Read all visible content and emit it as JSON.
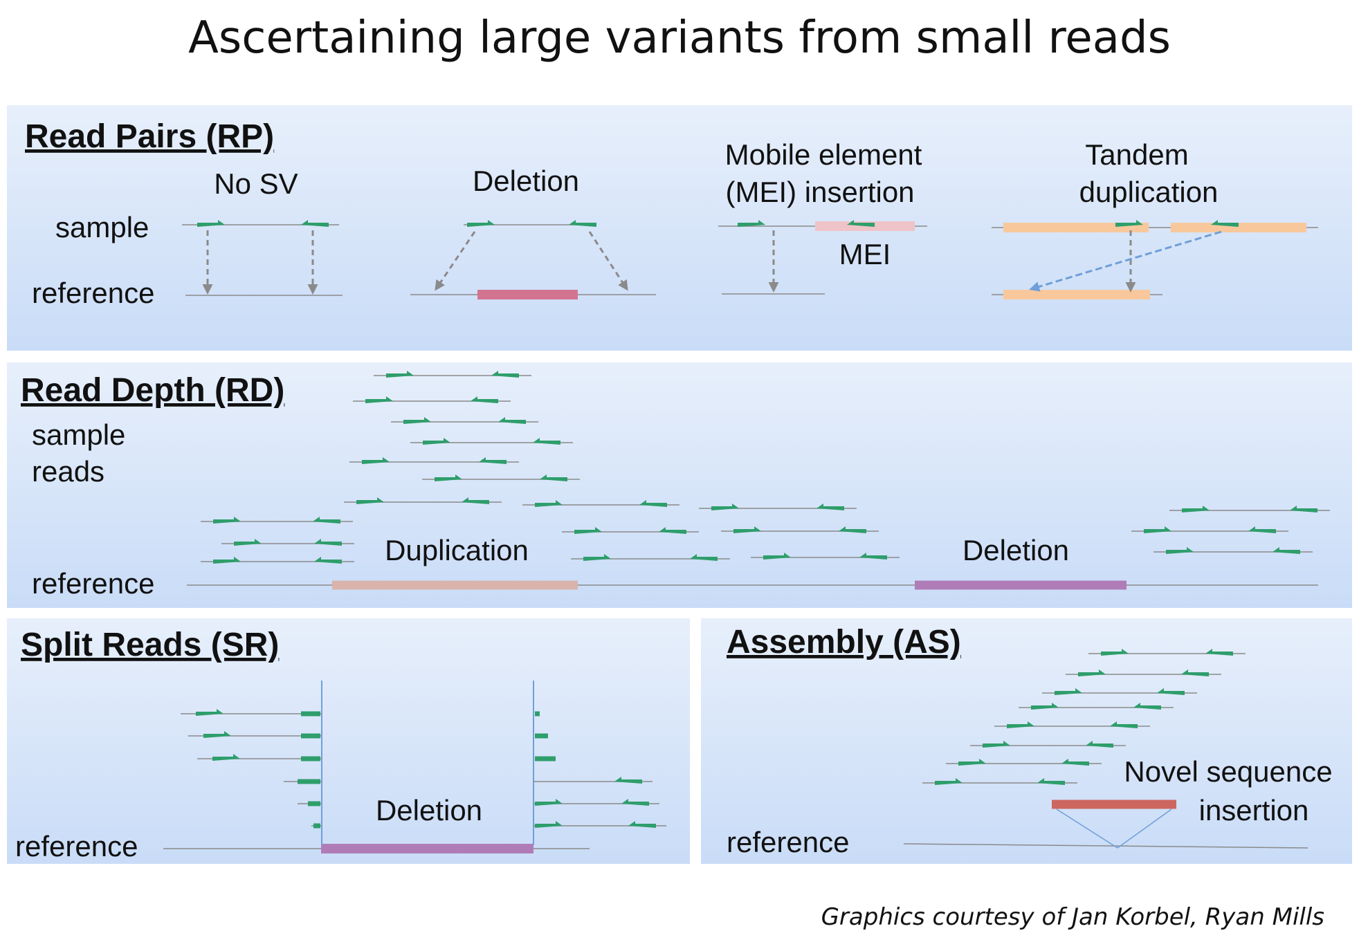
{
  "title": "Ascertaining large variants from small reads",
  "colors": {
    "panel_top": "#e7effb",
    "panel_bottom": "#c9dcf7",
    "read_green": "#2e9e6b",
    "line_gray": "#8a8a8a",
    "deletion_pink": "#d27390",
    "deletion_purple": "#b07cb8",
    "duplication_tan": "#d9b3ac",
    "mei_pink": "#eec4c8",
    "tandem_orange": "#f8c89c",
    "novel_red": "#cd665f",
    "connector_blue": "#6f9fd8"
  },
  "icons": [
    "read-arrow-icon",
    "dashed-mapping-arrow-icon"
  ],
  "read_pairs": {
    "heading": "Read Pairs (RP)",
    "sample_label": "sample",
    "reference_label": "reference",
    "no_sv": "No SV",
    "deletion": "Deletion",
    "mei_line1": "Mobile element",
    "mei_line2": "(MEI) insertion",
    "mei_tag": "MEI",
    "tandem_line1": "Tandem",
    "tandem_line2": "duplication"
  },
  "read_depth": {
    "heading": "Read Depth (RD)",
    "sample_reads_line1": "sample",
    "sample_reads_line2": "reads",
    "duplication": "Duplication",
    "deletion": "Deletion",
    "reference_label": "reference"
  },
  "split_reads": {
    "heading": "Split Reads (SR)",
    "deletion": "Deletion",
    "reference_label": "reference"
  },
  "assembly": {
    "heading": "Assembly (AS)",
    "novel_line1": "Novel sequence",
    "novel_line2": "insertion",
    "reference_label": "reference"
  },
  "credit": "Graphics courtesy of Jan Korbel, Ryan Mills"
}
